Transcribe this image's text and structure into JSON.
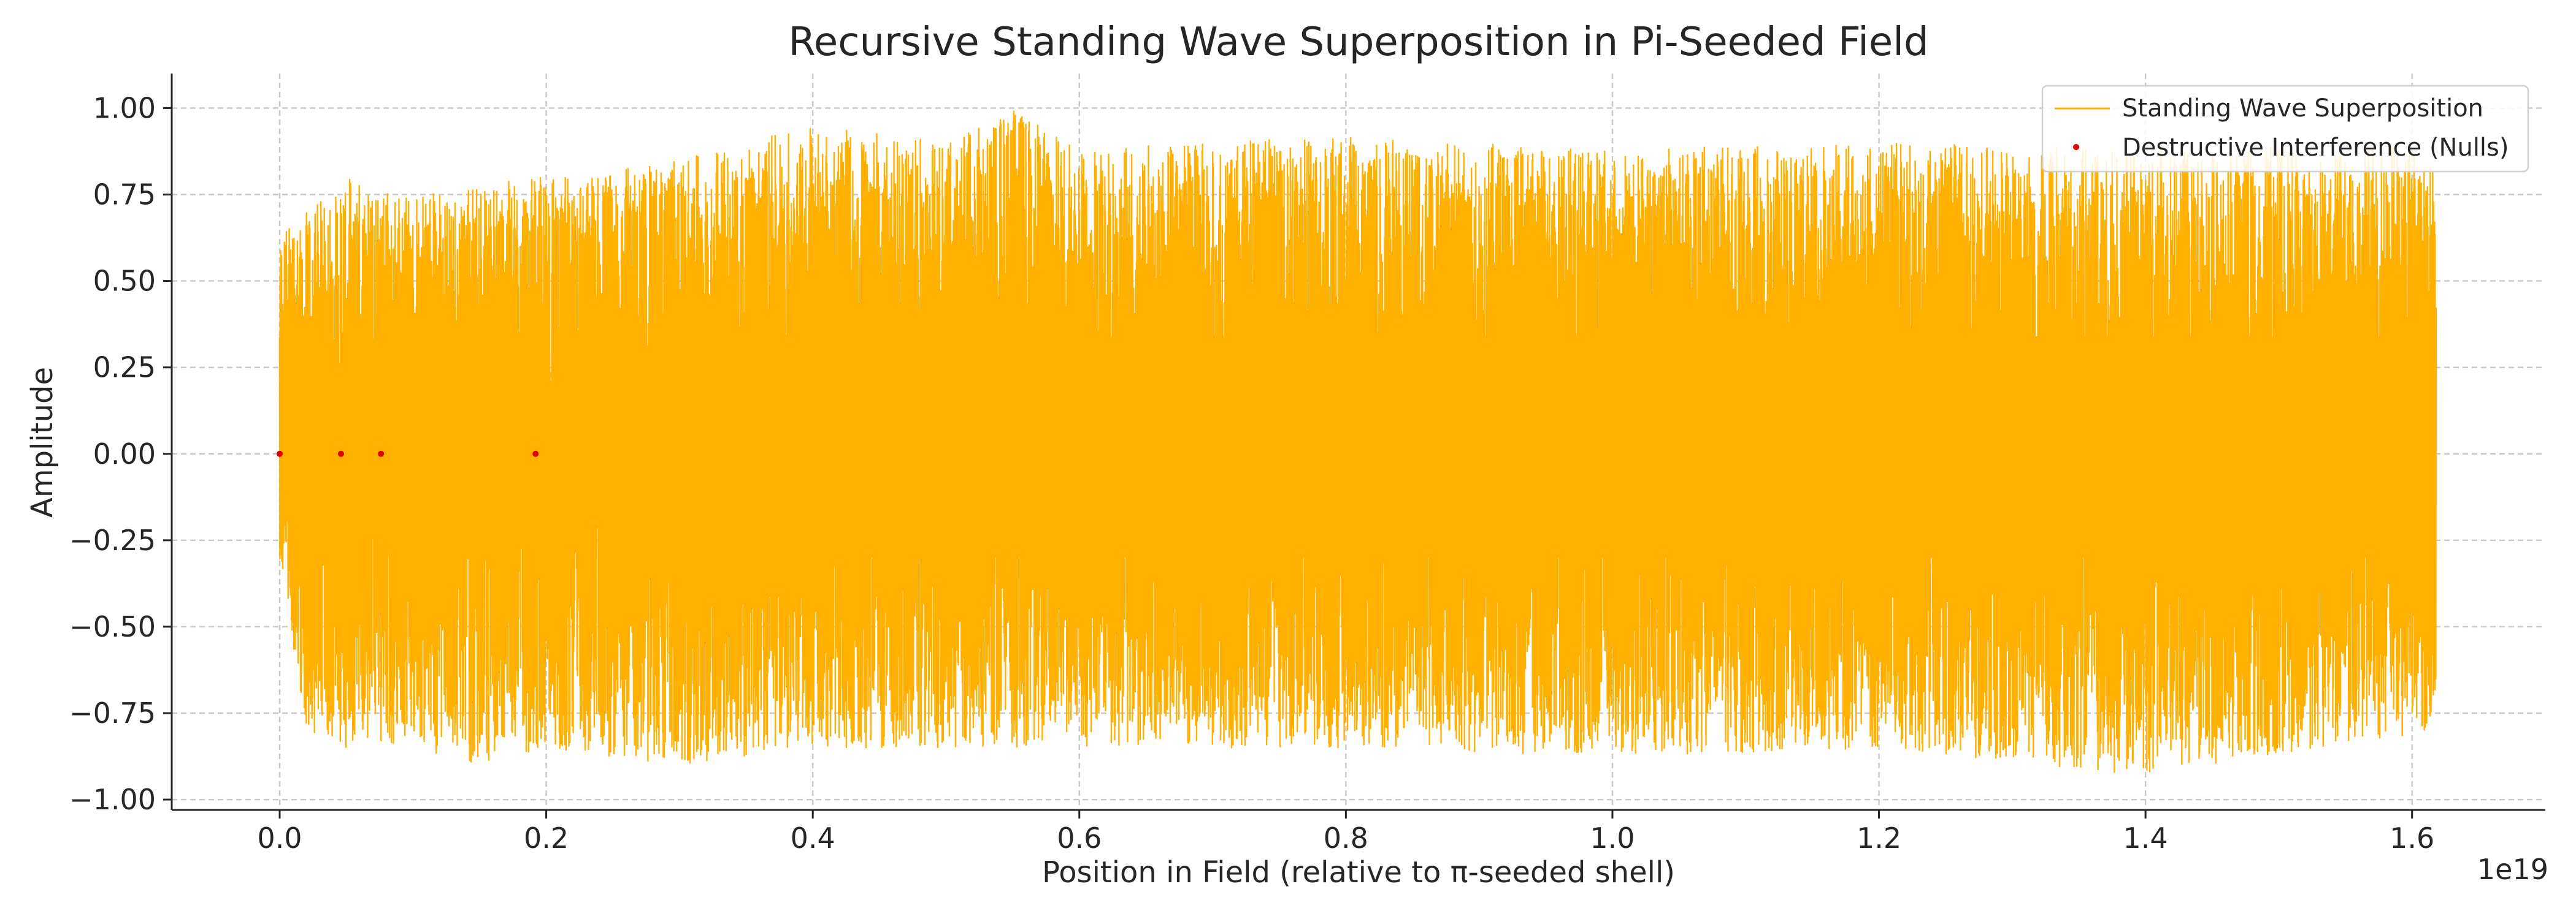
{
  "chart_data": {
    "type": "line",
    "title": "Recursive Standing Wave Superposition in Pi-Seeded Field",
    "xlabel": "Position in Field (relative to π-seeded shell)",
    "ylabel": "Amplitude",
    "x_offset_label": "1e19",
    "xlim": [
      -0.081,
      1.7
    ],
    "ylim": [
      -1.03,
      1.1
    ],
    "x_range_of_data": [
      0.0,
      1.618
    ],
    "x_ticks": [
      0.0,
      0.2,
      0.4,
      0.6,
      0.8,
      1.0,
      1.2,
      1.4,
      1.6
    ],
    "x_tick_labels": [
      "0.0",
      "0.2",
      "0.4",
      "0.6",
      "0.8",
      "1.0",
      "1.2",
      "1.4",
      "1.6"
    ],
    "y_ticks": [
      1.0,
      0.75,
      0.5,
      0.25,
      0.0,
      -0.25,
      -0.5,
      -0.75,
      -1.0
    ],
    "y_tick_labels": [
      "1.00",
      "0.75",
      "0.50",
      "0.25",
      "0.00",
      "−0.25",
      "−0.50",
      "−0.75",
      "−1.00"
    ],
    "grid": true,
    "legend_position": "top-right",
    "series": [
      {
        "name": "Standing Wave Superposition",
        "type": "line",
        "color": "#ffb000",
        "envelope": {
          "x": [
            0.0,
            0.02,
            0.05,
            0.1,
            0.15,
            0.2,
            0.25,
            0.3,
            0.4,
            0.5,
            0.55,
            0.6,
            0.8,
            1.0,
            1.2,
            1.4,
            1.618
          ],
          "upper": [
            0.65,
            0.7,
            0.8,
            0.75,
            0.78,
            0.8,
            0.82,
            0.85,
            0.95,
            0.9,
            1.0,
            0.88,
            0.92,
            0.88,
            0.9,
            0.88,
            0.9
          ],
          "lower": [
            -0.3,
            -0.8,
            -0.85,
            -0.85,
            -0.9,
            -0.85,
            -0.88,
            -0.9,
            -0.85,
            -0.85,
            -0.85,
            -0.85,
            -0.85,
            -0.88,
            -0.85,
            -0.93,
            -0.8
          ]
        }
      },
      {
        "name": "Destructive Interference (Nulls)",
        "type": "scatter",
        "color": "#e00000",
        "x": [
          0.0,
          0.046,
          0.076,
          0.192
        ],
        "y": [
          0.0,
          0.0,
          0.0,
          0.0
        ]
      }
    ]
  }
}
